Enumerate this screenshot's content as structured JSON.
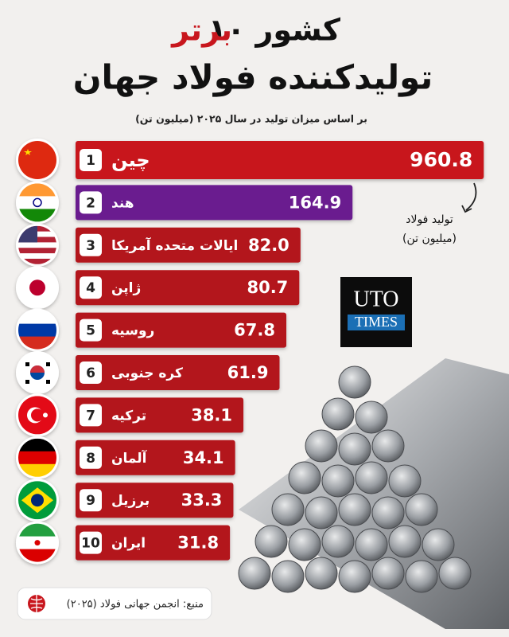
{
  "chart_data": {
    "type": "bar",
    "orientation": "horizontal",
    "title": {
      "part1": "۱۰ کشور",
      "part2": "برتر",
      "line2": "تولیدکننده فولاد جهان"
    },
    "subtitle": "بر اساس میزان تولید در سال ۲۰۲۵ (میلیون تن)",
    "ranks": [
      1,
      2,
      3,
      4,
      5,
      6,
      7,
      8,
      9,
      10
    ],
    "categories": [
      "چین",
      "هند",
      "ایالات متحده آمریکا",
      "ژاپن",
      "روسیه",
      "کره جنوبی",
      "ترکیه",
      "آلمان",
      "برزیل",
      "ایران"
    ],
    "values": [
      960.8,
      164.9,
      82.0,
      80.7,
      67.8,
      61.9,
      38.1,
      34.1,
      33.3,
      31.8
    ],
    "value_labels": [
      "960.8",
      "164.9",
      "82.0",
      "80.7",
      "67.8",
      "61.9",
      "38.1",
      "34.1",
      "33.3",
      "31.8"
    ],
    "colors": [
      "#c8161d",
      "#6a1b8f",
      "#b3131b",
      "#b3131b",
      "#b3131b",
      "#b3131b",
      "#b3131b",
      "#b3131b",
      "#b3131b",
      "#b3131b"
    ],
    "xscale": "log",
    "xlim": [
      4,
      1000
    ],
    "annotation": [
      "تولید فولاد",
      "(میلیون تن)"
    ],
    "logo": [
      "UTO",
      "TIMES"
    ],
    "source": "منبع: انجمن جهانی فولاد (۲۰۲۵)"
  }
}
